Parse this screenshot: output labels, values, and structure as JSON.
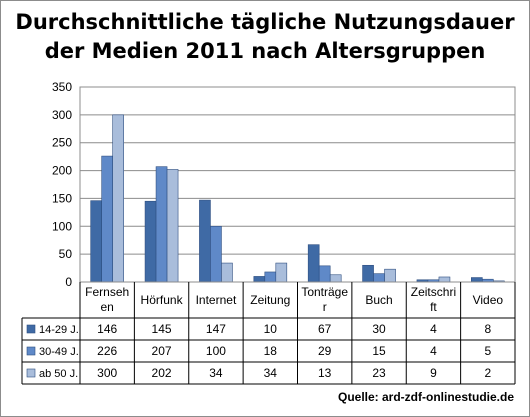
{
  "chart_data": {
    "type": "bar",
    "title": "Durchschnittliche tägliche Nutzungsdauer der Medien 2011 nach Altersgruppen",
    "title_lines": [
      "Durchschnittliche tägliche Nutzungsdauer",
      "der Medien 2011 nach Altersgruppen"
    ],
    "categories": [
      "Fernsehen",
      "Hörfunk",
      "Internet",
      "Zeitung",
      "Tonträger",
      "Buch",
      "Zeitschrift",
      "Video"
    ],
    "category_display": [
      [
        "Fernseh",
        "en"
      ],
      [
        "Hörfunk"
      ],
      [
        "Internet"
      ],
      [
        "Zeitung"
      ],
      [
        "Tonträge",
        "r"
      ],
      [
        "Buch"
      ],
      [
        "Zeitschri",
        "ft"
      ],
      [
        "Video"
      ]
    ],
    "series": [
      {
        "name": "14-29 J.",
        "values": [
          146,
          145,
          147,
          10,
          67,
          30,
          4,
          8
        ],
        "color": "#3f6aa5"
      },
      {
        "name": "30-49 J.",
        "values": [
          226,
          207,
          100,
          18,
          29,
          15,
          4,
          5
        ],
        "color": "#5f89c8"
      },
      {
        "name": "ab 50 J.",
        "values": [
          300,
          202,
          34,
          34,
          13,
          23,
          9,
          2
        ],
        "color": "#a9bddb"
      }
    ],
    "ylim": [
      0,
      350
    ],
    "yticks": [
      0,
      50,
      100,
      150,
      200,
      250,
      300,
      350
    ],
    "grid": true,
    "legend": "data-table",
    "source": "Quelle: ard-zdf-onlinestudie.de"
  }
}
